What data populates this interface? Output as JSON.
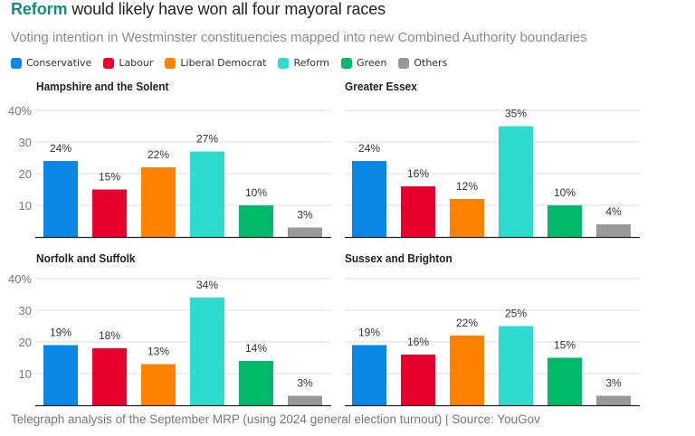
{
  "header": {
    "title_highlight": "Reform",
    "title_rest": " would likely have won all four mayoral races",
    "subtitle": "Voting intention in Westminster constituencies mapped into new Combined Authority boundaries"
  },
  "legend": [
    {
      "label": "Conservative",
      "color": "#0a87e4"
    },
    {
      "label": "Labour",
      "color": "#e8002d"
    },
    {
      "label": "Liberal Democrat",
      "color": "#ff8200"
    },
    {
      "label": "Reform",
      "color": "#2fdbcf"
    },
    {
      "label": "Green",
      "color": "#00b96b"
    },
    {
      "label": "Others",
      "color": "#999999"
    }
  ],
  "footer": "Telegraph analysis of the September MRP (using 2024 general election turnout) | Source: YouGov",
  "chart_data": [
    {
      "type": "bar",
      "title": "Hampshire and the Solent",
      "categories": [
        "Conservative",
        "Labour",
        "Liberal Democrat",
        "Reform",
        "Green",
        "Others"
      ],
      "values": [
        24,
        15,
        22,
        27,
        10,
        3
      ],
      "value_labels": [
        "24%",
        "15%",
        "22%",
        "27%",
        "10%",
        "3%"
      ],
      "ylim": [
        0,
        40
      ],
      "yticks": [
        10,
        20,
        30,
        40
      ],
      "ytick_labels": [
        "10",
        "20",
        "30",
        "40%"
      ],
      "show_yaxis_labels": true,
      "grid": true
    },
    {
      "type": "bar",
      "title": "Greater Essex",
      "categories": [
        "Conservative",
        "Labour",
        "Liberal Democrat",
        "Reform",
        "Green",
        "Others"
      ],
      "values": [
        24,
        16,
        12,
        35,
        10,
        4
      ],
      "value_labels": [
        "24%",
        "16%",
        "12%",
        "35%",
        "10%",
        "4%"
      ],
      "ylim": [
        0,
        40
      ],
      "yticks": [
        10,
        20,
        30,
        40
      ],
      "ytick_labels": [
        "10",
        "20",
        "30",
        "40%"
      ],
      "show_yaxis_labels": false,
      "grid": true
    },
    {
      "type": "bar",
      "title": "Norfolk and Suffolk",
      "categories": [
        "Conservative",
        "Labour",
        "Liberal Democrat",
        "Reform",
        "Green",
        "Others"
      ],
      "values": [
        19,
        18,
        13,
        34,
        14,
        3
      ],
      "value_labels": [
        "19%",
        "18%",
        "13%",
        "34%",
        "14%",
        "3%"
      ],
      "ylim": [
        0,
        40
      ],
      "yticks": [
        10,
        20,
        30,
        40
      ],
      "ytick_labels": [
        "10",
        "20",
        "30",
        "40%"
      ],
      "show_yaxis_labels": true,
      "grid": true
    },
    {
      "type": "bar",
      "title": "Sussex and Brighton",
      "categories": [
        "Conservative",
        "Labour",
        "Liberal Democrat",
        "Reform",
        "Green",
        "Others"
      ],
      "values": [
        19,
        16,
        22,
        25,
        15,
        3
      ],
      "value_labels": [
        "19%",
        "16%",
        "22%",
        "25%",
        "15%",
        "3%"
      ],
      "ylim": [
        0,
        40
      ],
      "yticks": [
        10,
        20,
        30,
        40
      ],
      "ytick_labels": [
        "10",
        "20",
        "30",
        "40%"
      ],
      "show_yaxis_labels": false,
      "grid": true
    }
  ]
}
